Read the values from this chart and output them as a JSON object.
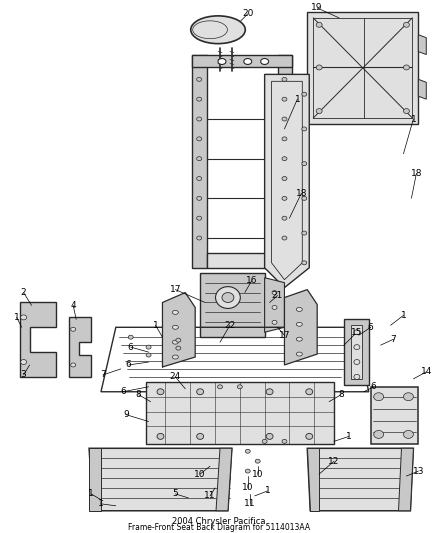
{
  "title": "2004 Chrysler Pacifica\nFrame-Front Seat Back Diagram for 5114013AA",
  "bg_color": "#ffffff",
  "fig_width": 4.38,
  "fig_height": 5.33,
  "dpi": 100,
  "line_color": "#2a2a2a",
  "text_color": "#000000",
  "font_size": 6.5,
  "gray_fill": "#c8c8c8",
  "light_fill": "#e0e0e0",
  "dark_fill": "#a0a0a0"
}
